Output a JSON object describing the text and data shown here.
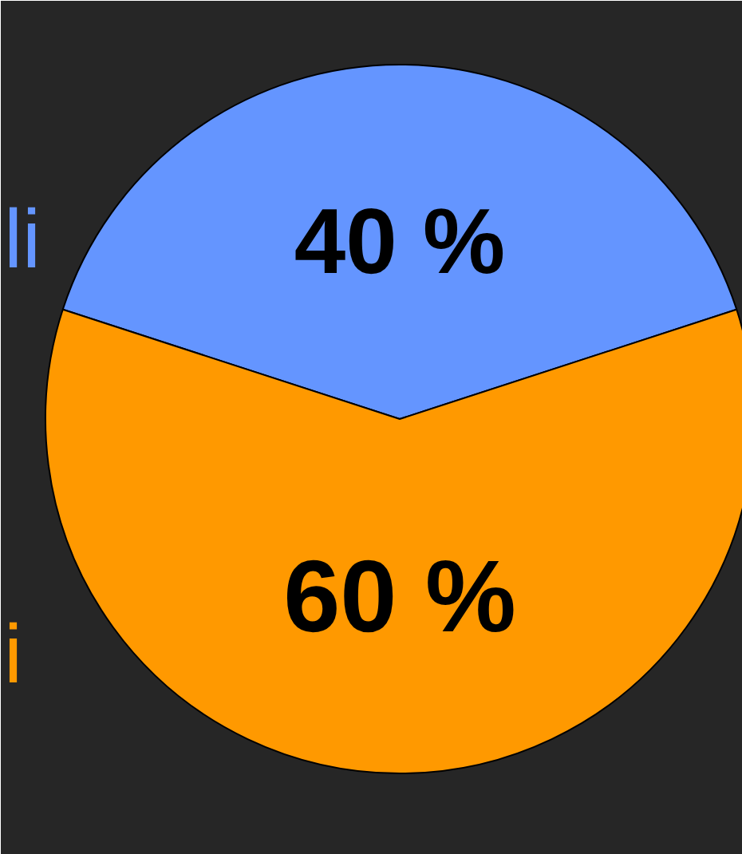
{
  "chart_data": {
    "type": "pie",
    "categories": [
      "li",
      "i"
    ],
    "values": [
      40,
      60
    ],
    "colors": [
      "#6495ff",
      "#ff9900"
    ],
    "value_labels": [
      "40 %",
      "60 %"
    ]
  }
}
